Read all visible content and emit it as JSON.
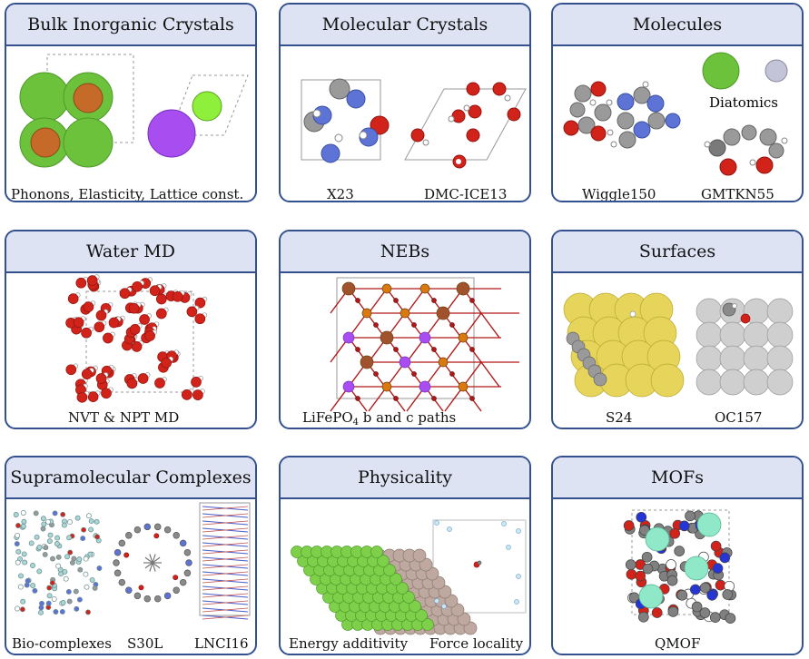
{
  "panels": {
    "bulk": {
      "title": "Bulk Inorganic Crystals",
      "captions": [
        "Phonons, Elasticity, Lattice const."
      ]
    },
    "molecular_crystals": {
      "title": "Molecular Crystals",
      "captions": [
        "X23",
        "DMC-ICE13"
      ]
    },
    "molecules": {
      "title": "Molecules",
      "captions": [
        "Wiggle150",
        "GMTKN55"
      ],
      "label": "Diatomics"
    },
    "water": {
      "title": "Water MD",
      "captions": [
        "NVT & NPT MD"
      ]
    },
    "nebs": {
      "title": "NEBs",
      "caption_pre": "LiFePO",
      "caption_sub": "4",
      "caption_post": " b and c paths"
    },
    "surfaces": {
      "title": "Surfaces",
      "captions": [
        "S24",
        "OC157"
      ]
    },
    "supramolecular": {
      "title": "Supramolecular Complexes",
      "captions": [
        "Bio-complexes",
        "S30L",
        "LNCI16"
      ]
    },
    "physicality": {
      "title": "Physicality",
      "captions": [
        "Energy additivity",
        "Force locality"
      ]
    },
    "mofs": {
      "title": "MOFs",
      "captions": [
        "QMOF"
      ]
    }
  },
  "colors": {
    "border": "#33518f",
    "header_bg": "#dde3f3",
    "green": "#6cc23a",
    "brown": "#c66a2a",
    "purple": "#a84ef0",
    "lime": "#8ef03a",
    "grey": "#9a9a9a",
    "blue": "#5d74d6",
    "red": "#d2231a",
    "yellow": "#e6d55a",
    "teal": "#8fe8c8",
    "tan": "#bfa8a0"
  }
}
